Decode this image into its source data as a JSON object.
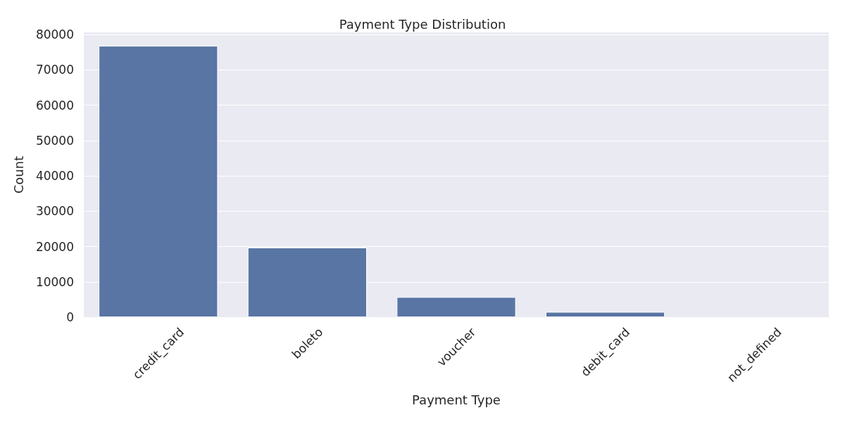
{
  "chart_data": {
    "type": "bar",
    "title": "Payment Type Distribution",
    "xlabel": "Payment Type",
    "ylabel": "Count",
    "categories": [
      "credit_card",
      "boleto",
      "voucher",
      "debit_card",
      "not_defined"
    ],
    "values": [
      76800,
      19700,
      5700,
      1500,
      0
    ],
    "color": "#5975a4",
    "ylim": [
      0,
      80600
    ],
    "yticks": [
      0,
      10000,
      20000,
      30000,
      40000,
      50000,
      60000,
      70000,
      80000
    ],
    "grid": "y"
  }
}
